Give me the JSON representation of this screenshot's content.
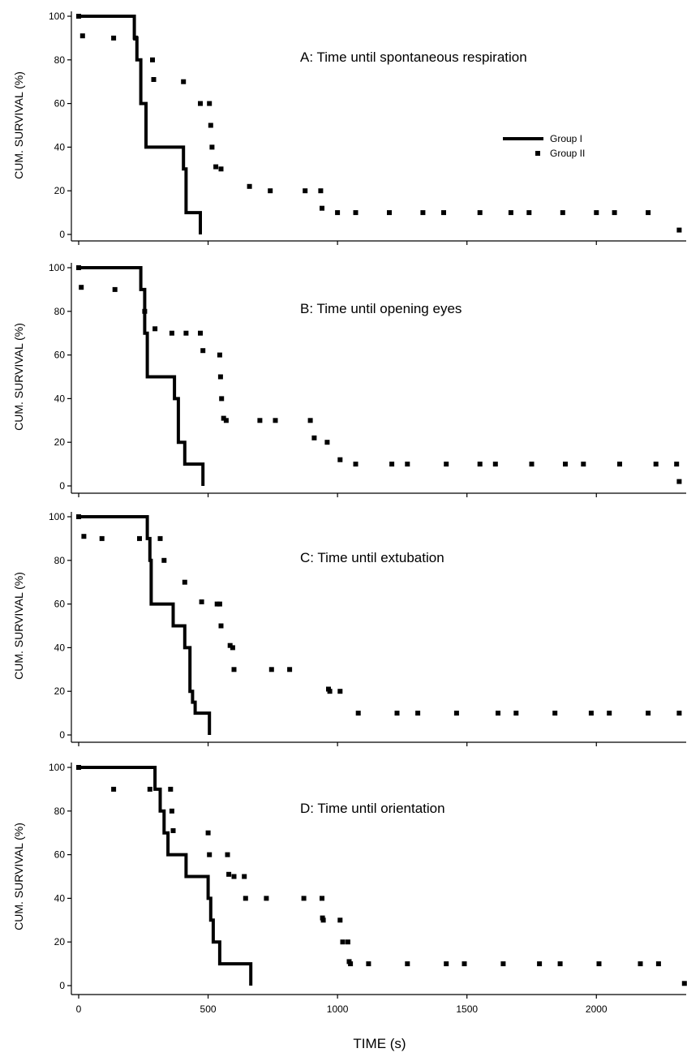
{
  "xlabel": "TIME (s)",
  "legend": {
    "group1": "Group I",
    "group2": "Group II"
  },
  "colors": {
    "ink": "#000000",
    "background": "#ffffff"
  },
  "chart_data": [
    {
      "type": "line",
      "title": "A: Time until spontaneous respiration",
      "xlabel": "",
      "ylabel": "CUM. SURVIVAL (%)",
      "xlim": [
        0,
        2350
      ],
      "ylim": [
        0,
        100
      ],
      "yticks": [
        0,
        20,
        40,
        60,
        80,
        100
      ],
      "xticks": [
        0,
        500,
        1000,
        1500,
        2000
      ],
      "show_x_tick_labels": false,
      "legend": "top-right",
      "series": [
        {
          "name": "Group I",
          "style": "step",
          "x": [
            0,
            215,
            215,
            225,
            225,
            240,
            240,
            260,
            260,
            405,
            405,
            415,
            415,
            470,
            470
          ],
          "y": [
            100,
            100,
            90,
            90,
            80,
            80,
            60,
            60,
            40,
            40,
            30,
            30,
            10,
            10,
            0
          ]
        },
        {
          "name": "Group II",
          "style": "dotted",
          "x": [
            0,
            15,
            135,
            220,
            285,
            290,
            405,
            470,
            505,
            510,
            515,
            530,
            550,
            660,
            740,
            875,
            935,
            940,
            1000,
            1070,
            1200,
            1330,
            1410,
            1550,
            1670,
            1740,
            1870,
            2000,
            2070,
            2200,
            2320
          ],
          "y": [
            100,
            91,
            90,
            90,
            80,
            71,
            70,
            60,
            60,
            50,
            40,
            31,
            30,
            22,
            20,
            20,
            20,
            12,
            10,
            10,
            10,
            10,
            10,
            10,
            10,
            10,
            10,
            10,
            10,
            10,
            2
          ]
        }
      ]
    },
    {
      "type": "line",
      "title": "B: Time until opening eyes",
      "xlabel": "",
      "ylabel": "CUM. SURVIVAL (%)",
      "xlim": [
        0,
        2350
      ],
      "ylim": [
        0,
        100
      ],
      "yticks": [
        0,
        20,
        40,
        60,
        80,
        100
      ],
      "xticks": [
        0,
        500,
        1000,
        1500,
        2000
      ],
      "show_x_tick_labels": false,
      "series": [
        {
          "name": "Group I",
          "style": "step",
          "x": [
            0,
            240,
            240,
            255,
            255,
            265,
            265,
            370,
            370,
            385,
            385,
            410,
            410,
            480,
            480
          ],
          "y": [
            100,
            100,
            90,
            90,
            70,
            70,
            50,
            50,
            40,
            40,
            20,
            20,
            10,
            10,
            0
          ]
        },
        {
          "name": "Group II",
          "style": "dotted",
          "x": [
            0,
            10,
            140,
            255,
            295,
            360,
            415,
            470,
            480,
            545,
            548,
            552,
            560,
            570,
            700,
            760,
            895,
            910,
            960,
            1010,
            1070,
            1210,
            1270,
            1420,
            1550,
            1610,
            1750,
            1880,
            1950,
            2090,
            2230,
            2310,
            2320
          ],
          "y": [
            100,
            91,
            90,
            80,
            72,
            70,
            70,
            70,
            62,
            60,
            50,
            40,
            31,
            30,
            30,
            30,
            30,
            22,
            20,
            12,
            10,
            10,
            10,
            10,
            10,
            10,
            10,
            10,
            10,
            10,
            10,
            10,
            2
          ]
        }
      ]
    },
    {
      "type": "line",
      "title": "C: Time until extubation",
      "xlabel": "",
      "ylabel": "CUM. SURVIVAL (%)",
      "xlim": [
        0,
        2350
      ],
      "ylim": [
        0,
        100
      ],
      "yticks": [
        0,
        20,
        40,
        60,
        80,
        100
      ],
      "xticks": [
        0,
        500,
        1000,
        1500,
        2000
      ],
      "show_x_tick_labels": false,
      "series": [
        {
          "name": "Group I",
          "style": "step",
          "x": [
            0,
            265,
            265,
            275,
            275,
            280,
            280,
            365,
            365,
            410,
            410,
            430,
            430,
            440,
            440,
            450,
            450,
            505,
            505
          ],
          "y": [
            100,
            100,
            90,
            90,
            80,
            80,
            60,
            60,
            50,
            50,
            40,
            40,
            20,
            20,
            15,
            15,
            10,
            10,
            0
          ]
        },
        {
          "name": "Group II",
          "style": "dotted",
          "x": [
            0,
            20,
            90,
            235,
            315,
            330,
            410,
            475,
            535,
            545,
            550,
            585,
            595,
            600,
            745,
            815,
            965,
            970,
            1010,
            1080,
            1230,
            1310,
            1460,
            1620,
            1690,
            1840,
            1980,
            2050,
            2200,
            2320
          ],
          "y": [
            100,
            91,
            90,
            90,
            90,
            80,
            70,
            61,
            60,
            60,
            50,
            41,
            40,
            30,
            30,
            30,
            21,
            20,
            20,
            10,
            10,
            10,
            10,
            10,
            10,
            10,
            10,
            10,
            10,
            10
          ]
        }
      ]
    },
    {
      "type": "line",
      "title": "D: Time until orientation",
      "xlabel": "TIME (s)",
      "ylabel": "CUM. SURVIVAL (%)",
      "xlim": [
        0,
        2350
      ],
      "ylim": [
        0,
        100
      ],
      "yticks": [
        0,
        20,
        40,
        60,
        80,
        100
      ],
      "xticks": [
        0,
        500,
        1000,
        1500,
        2000
      ],
      "show_x_tick_labels": true,
      "series": [
        {
          "name": "Group I",
          "style": "step",
          "x": [
            0,
            295,
            295,
            315,
            315,
            330,
            330,
            345,
            345,
            415,
            415,
            500,
            500,
            510,
            510,
            520,
            520,
            545,
            545,
            665,
            665
          ],
          "y": [
            100,
            100,
            90,
            90,
            80,
            80,
            70,
            70,
            60,
            60,
            50,
            50,
            40,
            40,
            30,
            30,
            20,
            20,
            10,
            10,
            0
          ]
        },
        {
          "name": "Group II",
          "style": "dotted",
          "x": [
            0,
            135,
            275,
            355,
            360,
            365,
            500,
            505,
            575,
            580,
            600,
            640,
            645,
            725,
            870,
            940,
            942,
            945,
            1010,
            1020,
            1040,
            1045,
            1050,
            1120,
            1270,
            1420,
            1490,
            1640,
            1780,
            1860,
            2010,
            2170,
            2240,
            2340
          ],
          "y": [
            100,
            90,
            90,
            90,
            80,
            71,
            70,
            60,
            60,
            51,
            50,
            50,
            40,
            40,
            40,
            40,
            31,
            30,
            30,
            20,
            20,
            11,
            10,
            10,
            10,
            10,
            10,
            10,
            10,
            10,
            10,
            10,
            10,
            1
          ]
        }
      ]
    }
  ]
}
